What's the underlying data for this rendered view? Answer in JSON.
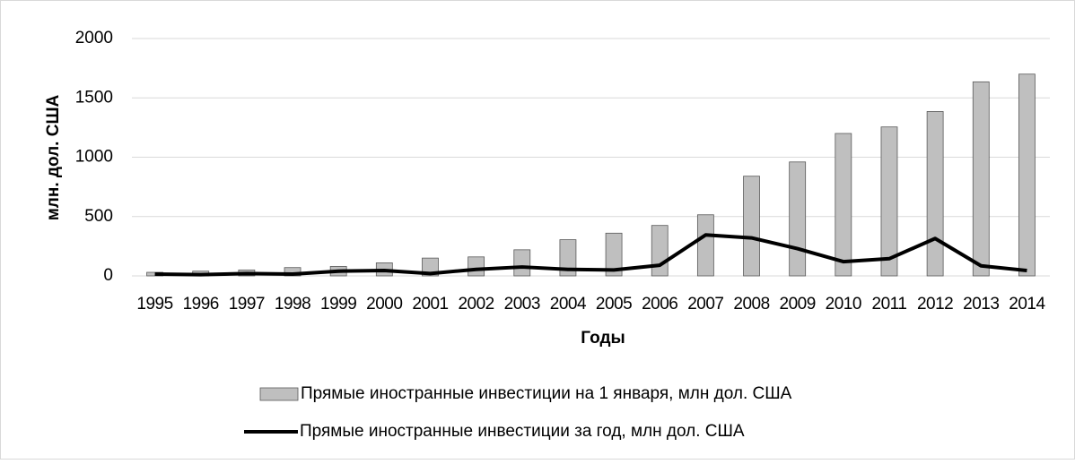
{
  "chart_data": {
    "type": "bar-line",
    "x_label": "Годы",
    "y_label": "млн. дол. США",
    "categories": [
      "1995",
      "1996",
      "1997",
      "1998",
      "1999",
      "2000",
      "2001",
      "2002",
      "2003",
      "2004",
      "2005",
      "2006",
      "2007",
      "2008",
      "2009",
      "2010",
      "2011",
      "2012",
      "2013",
      "2014"
    ],
    "series": [
      {
        "name": "Прямые иностранные инвестиции на 1 января, млн дол. США",
        "kind": "bar",
        "color": "#bfbfbf",
        "values": [
          30,
          40,
          50,
          70,
          80,
          110,
          150,
          160,
          220,
          305,
          360,
          425,
          515,
          840,
          960,
          1200,
          1255,
          1385,
          1635,
          1700
        ]
      },
      {
        "name": "Прямые иностранные инвестиции за год, млн дол. США",
        "kind": "line",
        "color": "#000000",
        "values": [
          15,
          10,
          20,
          15,
          40,
          45,
          20,
          55,
          75,
          55,
          50,
          90,
          345,
          320,
          230,
          120,
          145,
          315,
          85,
          45
        ]
      }
    ],
    "ylim": [
      0,
      2000
    ],
    "yticks": [
      0,
      500,
      1000,
      1500,
      2000
    ],
    "grid": true
  }
}
